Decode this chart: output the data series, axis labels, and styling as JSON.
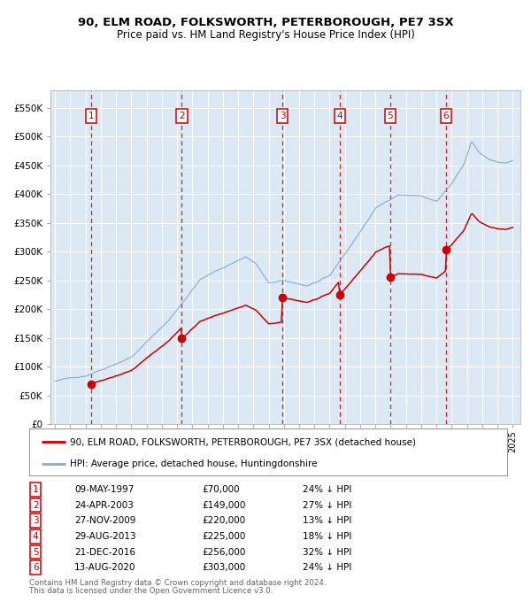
{
  "title_line1": "90, ELM ROAD, FOLKSWORTH, PETERBOROUGH, PE7 3SX",
  "title_line2": "Price paid vs. HM Land Registry's House Price Index (HPI)",
  "background_color": "#dce9f5",
  "grid_color": "#ffffff",
  "sale_points": [
    {
      "num": 1,
      "date_decimal": 1997.3562,
      "price": 70000,
      "label": "09-MAY-1997",
      "pct": "24% ↓ HPI"
    },
    {
      "num": 2,
      "date_decimal": 2003.3096,
      "price": 149000,
      "label": "24-APR-2003",
      "pct": "27% ↓ HPI"
    },
    {
      "num": 3,
      "date_decimal": 2009.9041,
      "price": 220000,
      "label": "27-NOV-2009",
      "pct": "13% ↓ HPI"
    },
    {
      "num": 4,
      "date_decimal": 2013.6575,
      "price": 225000,
      "label": "29-AUG-2013",
      "pct": "18% ↓ HPI"
    },
    {
      "num": 5,
      "date_decimal": 2016.9726,
      "price": 256000,
      "label": "21-DEC-2016",
      "pct": "32% ↓ HPI"
    },
    {
      "num": 6,
      "date_decimal": 2020.6164,
      "price": 303000,
      "label": "13-AUG-2020",
      "pct": "24% ↓ HPI"
    }
  ],
  "legend_label_red": "90, ELM ROAD, FOLKSWORTH, PETERBOROUGH, PE7 3SX (detached house)",
  "legend_label_blue": "HPI: Average price, detached house, Huntingdonshire",
  "footnote1": "Contains HM Land Registry data © Crown copyright and database right 2024.",
  "footnote2": "This data is licensed under the Open Government Licence v3.0.",
  "red_line_color": "#cc0000",
  "blue_line_color": "#88aacc",
  "marker_color": "#cc0000",
  "box_color": "#cc0000",
  "ylim_max": 580000,
  "yticks": [
    0,
    50000,
    100000,
    150000,
    200000,
    250000,
    300000,
    350000,
    400000,
    450000,
    500000,
    550000
  ],
  "ylabels": [
    "£0",
    "£50K",
    "£100K",
    "£150K",
    "£200K",
    "£250K",
    "£300K",
    "£350K",
    "£400K",
    "£450K",
    "£500K",
    "£550K"
  ]
}
